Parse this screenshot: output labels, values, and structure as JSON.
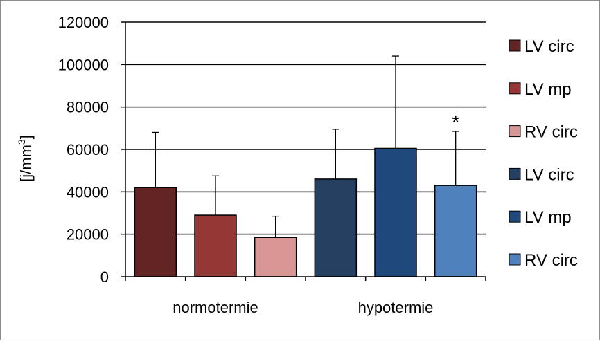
{
  "chart_data": {
    "type": "bar",
    "title": "",
    "ylabel_main": "[j/mm",
    "ylabel_sup": "3",
    "ylabel_end": "]",
    "ylim": [
      0,
      120000
    ],
    "yticks": [
      0,
      20000,
      40000,
      60000,
      80000,
      100000,
      120000
    ],
    "ytick_labels": [
      "0",
      "20000",
      "40000",
      "60000",
      "80000",
      "100000",
      "120000"
    ],
    "grid": true,
    "legend_position": "right",
    "categories": [
      "normotermie",
      "hypotermie"
    ],
    "series": [
      {
        "name": "LV circ",
        "group": 0,
        "value": 42000,
        "error": 26000,
        "color": "#632523"
      },
      {
        "name": "LV mp",
        "group": 0,
        "value": 29000,
        "error": 18500,
        "color": "#953735"
      },
      {
        "name": "RV circ",
        "group": 0,
        "value": 18500,
        "error": 10000,
        "color": "#d99694"
      },
      {
        "name": "LV circ",
        "group": 1,
        "value": 46000,
        "error": 23500,
        "color": "#254061"
      },
      {
        "name": "LV mp",
        "group": 1,
        "value": 60500,
        "error": 43500,
        "color": "#1f497d"
      },
      {
        "name": "RV circ",
        "group": 1,
        "value": 43000,
        "error": 25500,
        "color": "#4f81bd"
      }
    ],
    "annotations": [
      {
        "text": "*",
        "series_index": 5
      }
    ]
  }
}
